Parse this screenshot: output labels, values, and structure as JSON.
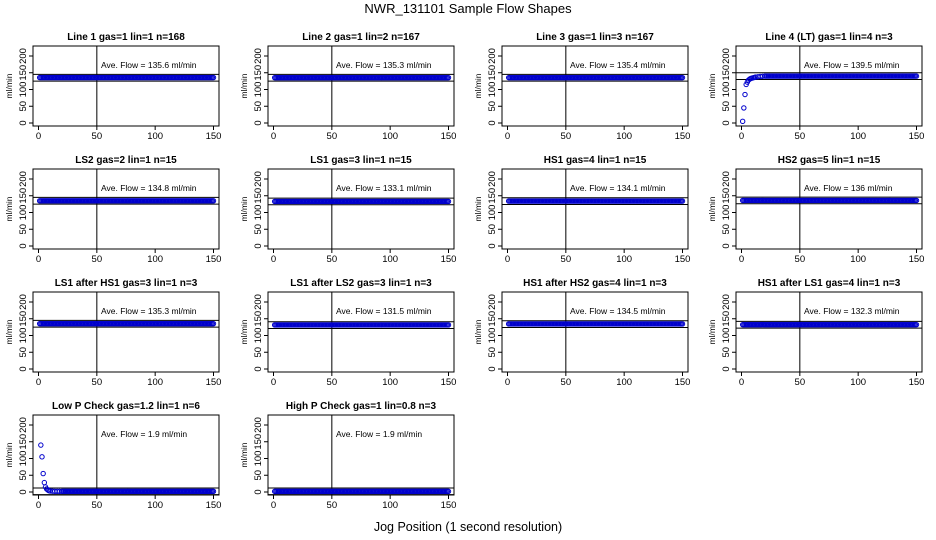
{
  "figure": {
    "title": "NWR_131101  Sample Flow Shapes",
    "xlabel": "Jog Position (1 second resolution)"
  },
  "chart_data": [
    {
      "type": "scatter",
      "title": "Line 1 gas=1 lin=1 n=168",
      "ylabel": "ml/min",
      "annotation": "Ave. Flow =  135.6  ml/min",
      "flow": 135.6,
      "xlim": [
        0,
        150
      ],
      "ylim": [
        0,
        200
      ],
      "xticks": [
        0,
        50,
        100,
        150
      ],
      "yticks": [
        0,
        50,
        100,
        150,
        200
      ],
      "hlines": [
        125,
        145
      ],
      "vline": 50,
      "profile": "flat",
      "series": [
        {
          "x_range": [
            1,
            150
          ],
          "y": 135.6
        }
      ]
    },
    {
      "type": "scatter",
      "title": "Line 2 gas=1 lin=2 n=167",
      "ylabel": "ml/min",
      "annotation": "Ave. Flow =  135.3  ml/min",
      "flow": 135.3,
      "xlim": [
        0,
        150
      ],
      "ylim": [
        0,
        200
      ],
      "xticks": [
        0,
        50,
        100,
        150
      ],
      "yticks": [
        0,
        50,
        100,
        150,
        200
      ],
      "hlines": [
        125,
        145
      ],
      "vline": 50,
      "profile": "flat",
      "series": [
        {
          "x_range": [
            1,
            150
          ],
          "y": 135.3
        }
      ]
    },
    {
      "type": "scatter",
      "title": "Line 3 gas=1 lin=3 n=167",
      "ylabel": "ml/min",
      "annotation": "Ave. Flow =  135.4  ml/min",
      "flow": 135.4,
      "xlim": [
        0,
        150
      ],
      "ylim": [
        0,
        200
      ],
      "xticks": [
        0,
        50,
        100,
        150
      ],
      "yticks": [
        0,
        50,
        100,
        150,
        200
      ],
      "hlines": [
        125,
        145
      ],
      "vline": 50,
      "profile": "flat",
      "series": [
        {
          "x_range": [
            1,
            150
          ],
          "y": 135.4
        }
      ]
    },
    {
      "type": "scatter",
      "title": "Line 4 (LT) gas=1 lin=4 n=3",
      "ylabel": "ml/min",
      "annotation": "Ave. Flow =  139.5  ml/min",
      "flow": 139.5,
      "xlim": [
        0,
        150
      ],
      "ylim": [
        0,
        200
      ],
      "xticks": [
        0,
        50,
        100,
        150
      ],
      "yticks": [
        0,
        50,
        100,
        150,
        200
      ],
      "hlines": [
        130,
        150
      ],
      "vline": 50,
      "profile": "rise",
      "series": [
        {
          "x": [
            1,
            2,
            3,
            4,
            5,
            6,
            7,
            8,
            9,
            10,
            11,
            12,
            14,
            16,
            18,
            20
          ],
          "y": [
            5,
            45,
            85,
            115,
            122,
            128,
            131,
            133,
            134,
            135,
            136,
            137,
            138,
            139,
            139.5,
            140
          ]
        },
        {
          "x_range": [
            21,
            150
          ],
          "y": 140
        }
      ]
    },
    {
      "type": "scatter",
      "title": "LS2 gas=2 lin=1 n=15",
      "ylabel": "ml/min",
      "annotation": "Ave. Flow =  134.8  ml/min",
      "flow": 134.8,
      "xlim": [
        0,
        150
      ],
      "ylim": [
        0,
        200
      ],
      "xticks": [
        0,
        50,
        100,
        150
      ],
      "yticks": [
        0,
        50,
        100,
        150,
        200
      ],
      "hlines": [
        125,
        145
      ],
      "vline": 50,
      "profile": "flat",
      "series": [
        {
          "x_range": [
            1,
            150
          ],
          "y": 134.8
        }
      ]
    },
    {
      "type": "scatter",
      "title": "LS1 gas=3 lin=1 n=15",
      "ylabel": "ml/min",
      "annotation": "Ave. Flow =  133.1  ml/min",
      "flow": 133.1,
      "xlim": [
        0,
        150
      ],
      "ylim": [
        0,
        200
      ],
      "xticks": [
        0,
        50,
        100,
        150
      ],
      "yticks": [
        0,
        50,
        100,
        150,
        200
      ],
      "hlines": [
        123,
        143
      ],
      "vline": 50,
      "profile": "flat",
      "series": [
        {
          "x_range": [
            1,
            150
          ],
          "y": 133.1
        }
      ]
    },
    {
      "type": "scatter",
      "title": "HS1 gas=4 lin=1 n=15",
      "ylabel": "ml/min",
      "annotation": "Ave. Flow =  134.1  ml/min",
      "flow": 134.1,
      "xlim": [
        0,
        150
      ],
      "ylim": [
        0,
        200
      ],
      "xticks": [
        0,
        50,
        100,
        150
      ],
      "yticks": [
        0,
        50,
        100,
        150,
        200
      ],
      "hlines": [
        124,
        144
      ],
      "vline": 50,
      "profile": "flat",
      "series": [
        {
          "x_range": [
            1,
            150
          ],
          "y": 134.1
        }
      ]
    },
    {
      "type": "scatter",
      "title": "HS2 gas=5 lin=1 n=15",
      "ylabel": "ml/min",
      "annotation": "Ave. Flow =  136  ml/min",
      "flow": 136,
      "xlim": [
        0,
        150
      ],
      "ylim": [
        0,
        200
      ],
      "xticks": [
        0,
        50,
        100,
        150
      ],
      "yticks": [
        0,
        50,
        100,
        150,
        200
      ],
      "hlines": [
        126,
        146
      ],
      "vline": 50,
      "profile": "flat",
      "series": [
        {
          "x_range": [
            1,
            150
          ],
          "y": 136
        }
      ]
    },
    {
      "type": "scatter",
      "title": "LS1 after HS1 gas=3 lin=1 n=3",
      "ylabel": "ml/min",
      "annotation": "Ave. Flow =  135.3  ml/min",
      "flow": 135.3,
      "xlim": [
        0,
        150
      ],
      "ylim": [
        0,
        200
      ],
      "xticks": [
        0,
        50,
        100,
        150
      ],
      "yticks": [
        0,
        50,
        100,
        150,
        200
      ],
      "hlines": [
        125,
        145
      ],
      "vline": 50,
      "profile": "flat",
      "series": [
        {
          "x_range": [
            1,
            150
          ],
          "y": 135.3
        }
      ]
    },
    {
      "type": "scatter",
      "title": "LS1 after LS2 gas=3 lin=1 n=3",
      "ylabel": "ml/min",
      "annotation": "Ave. Flow =  131.5  ml/min",
      "flow": 131.5,
      "xlim": [
        0,
        150
      ],
      "ylim": [
        0,
        200
      ],
      "xticks": [
        0,
        50,
        100,
        150
      ],
      "yticks": [
        0,
        50,
        100,
        150,
        200
      ],
      "hlines": [
        121,
        141
      ],
      "vline": 50,
      "profile": "flat",
      "series": [
        {
          "x_range": [
            1,
            150
          ],
          "y": 131.5
        }
      ]
    },
    {
      "type": "scatter",
      "title": "HS1 after HS2 gas=4 lin=1 n=3",
      "ylabel": "ml/min",
      "annotation": "Ave. Flow =  134.5  ml/min",
      "flow": 134.5,
      "xlim": [
        0,
        150
      ],
      "ylim": [
        0,
        200
      ],
      "xticks": [
        0,
        50,
        100,
        150
      ],
      "yticks": [
        0,
        50,
        100,
        150,
        200
      ],
      "hlines": [
        124,
        144
      ],
      "vline": 50,
      "profile": "flat",
      "series": [
        {
          "x_range": [
            1,
            150
          ],
          "y": 134.5
        }
      ]
    },
    {
      "type": "scatter",
      "title": "HS1 after LS1 gas=4 lin=1 n=3",
      "ylabel": "ml/min",
      "annotation": "Ave. Flow =  132.3  ml/min",
      "flow": 132.3,
      "xlim": [
        0,
        150
      ],
      "ylim": [
        0,
        200
      ],
      "xticks": [
        0,
        50,
        100,
        150
      ],
      "yticks": [
        0,
        50,
        100,
        150,
        200
      ],
      "hlines": [
        122,
        142
      ],
      "vline": 50,
      "profile": "flat",
      "series": [
        {
          "x_range": [
            1,
            150
          ],
          "y": 132.3
        }
      ]
    },
    {
      "type": "scatter",
      "title": "Low P Check gas=1.2 lin=1 n=6",
      "ylabel": "ml/min",
      "annotation": "Ave. Flow =  1.9  ml/min",
      "flow": 1.9,
      "xlim": [
        0,
        150
      ],
      "ylim": [
        0,
        200
      ],
      "xticks": [
        0,
        50,
        100,
        150
      ],
      "yticks": [
        0,
        50,
        100,
        150,
        200
      ],
      "hlines": [
        -8,
        12
      ],
      "vline": 50,
      "profile": "decay",
      "series": [
        {
          "x": [
            2,
            3,
            4,
            5,
            6,
            7,
            8,
            9,
            10,
            12,
            14,
            16,
            18,
            20
          ],
          "y": [
            140,
            105,
            55,
            28,
            15,
            9,
            6,
            4,
            3,
            2.5,
            2,
            2,
            2,
            2
          ]
        },
        {
          "x_range": [
            21,
            150
          ],
          "y": 2
        }
      ]
    },
    {
      "type": "scatter",
      "title": "High P Check gas=1 lin=0.8 n=3",
      "ylabel": "ml/min",
      "annotation": "Ave. Flow =  1.9  ml/min",
      "flow": 1.9,
      "xlim": [
        0,
        150
      ],
      "ylim": [
        0,
        200
      ],
      "xticks": [
        0,
        50,
        100,
        150
      ],
      "yticks": [
        0,
        50,
        100,
        150,
        200
      ],
      "hlines": [
        -8,
        12
      ],
      "vline": 50,
      "profile": "flat",
      "series": [
        {
          "x_range": [
            1,
            150
          ],
          "y": 1.9
        }
      ]
    }
  ],
  "style": {
    "point_color": "#0000cc",
    "axis_color": "#000000"
  }
}
